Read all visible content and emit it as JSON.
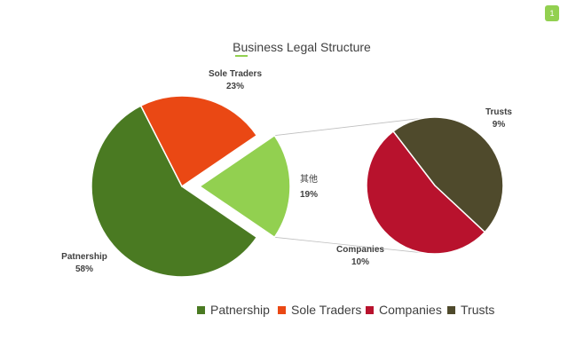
{
  "slide_number": "1",
  "chart_data": {
    "type": "pie",
    "title": "Business Legal Structure",
    "main_pie": {
      "slices": [
        {
          "name": "Patnership",
          "value": 58,
          "label": "58%",
          "color": "#4a7a22"
        },
        {
          "name": "Sole Traders",
          "value": 23,
          "label": "23%",
          "color": "#ea4814"
        },
        {
          "name": "其他",
          "value": 19,
          "label": "19%",
          "color": "#92d050"
        }
      ]
    },
    "secondary_pie": {
      "slices": [
        {
          "name": "Companies",
          "value": 10,
          "label": "10%",
          "color": "#b8122d"
        },
        {
          "name": "Trusts",
          "value": 9,
          "label": "9%",
          "color": "#4f4a2c"
        }
      ]
    },
    "legend": {
      "position": "bottom",
      "items": [
        {
          "name": "Patnership",
          "color": "#4a7a22"
        },
        {
          "name": "Sole Traders",
          "color": "#ea4814"
        },
        {
          "name": "Companies",
          "color": "#b8122d"
        },
        {
          "name": "Trusts",
          "color": "#4f4a2c"
        }
      ]
    }
  }
}
